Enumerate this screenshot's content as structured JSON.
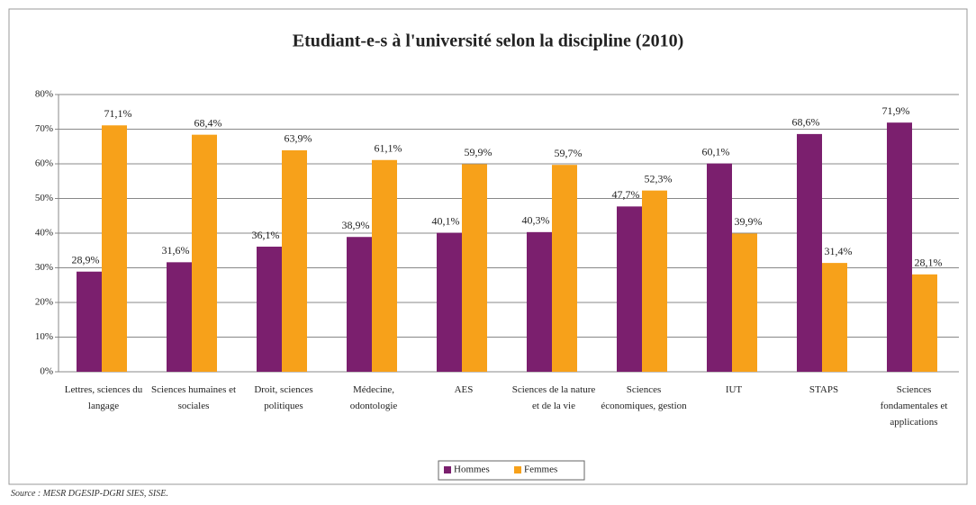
{
  "chart_data": {
    "type": "bar",
    "title": "Etudiant-e-s à l'université selon la discipline (2010)",
    "categories": [
      "Lettres, sciences du langage",
      "Sciences humaines et sociales",
      "Droit, sciences politiques",
      "Médecine, odontologie",
      "AES",
      "Sciences de la nature et de la vie",
      "Sciences économiques, gestion",
      "IUT",
      "STAPS",
      "Sciences fondamentales et applications"
    ],
    "series": [
      {
        "name": "Hommes",
        "color": "#7b1f6e",
        "values": [
          28.9,
          31.6,
          36.1,
          38.9,
          40.1,
          40.3,
          47.7,
          60.1,
          68.6,
          71.9
        ],
        "value_labels": [
          "28,9%",
          "31,6%",
          "36,1%",
          "38,9%",
          "40,1%",
          "40,3%",
          "47,7%",
          "60,1%",
          "68,6%",
          "71,9%"
        ]
      },
      {
        "name": "Femmes",
        "color": "#f7a11a",
        "values": [
          71.1,
          68.4,
          63.9,
          61.1,
          59.9,
          59.7,
          52.3,
          39.9,
          31.4,
          28.1
        ],
        "value_labels": [
          "71,1%",
          "68,4%",
          "63,9%",
          "61,1%",
          "59,9%",
          "59,7%",
          "52,3%",
          "39,9%",
          "31,4%",
          "28,1%"
        ]
      }
    ],
    "ylim": [
      0,
      80
    ],
    "yticks": [
      {
        "value": 0,
        "label": "0%"
      },
      {
        "value": 10,
        "label": "10%"
      },
      {
        "value": 20,
        "label": "20%"
      },
      {
        "value": 30,
        "label": "30%"
      },
      {
        "value": 40,
        "label": "40%"
      },
      {
        "value": 50,
        "label": "50%"
      },
      {
        "value": 60,
        "label": "60%"
      },
      {
        "value": 70,
        "label": "70%"
      },
      {
        "value": 80,
        "label": "80%"
      }
    ],
    "grid": true,
    "legend": "bottom",
    "source": "Source : MESR DGESIP-DGRI SIES, SISE."
  }
}
